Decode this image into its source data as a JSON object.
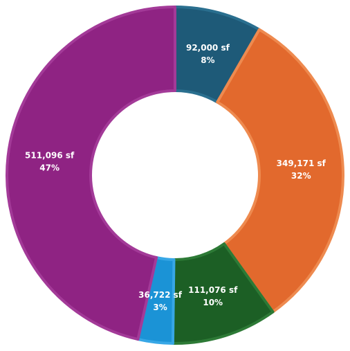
{
  "chart_data": {
    "type": "pie",
    "variant": "donut",
    "title": "",
    "unit": "sf",
    "slices": [
      {
        "value_label": "92,000 sf",
        "value": 92000,
        "percent": 8,
        "percent_label": "8%",
        "color": "#1e5a78",
        "stroke": "#2a6f8f"
      },
      {
        "value_label": "349,171 sf",
        "value": 349171,
        "percent": 32,
        "percent_label": "32%",
        "color": "#e2692d",
        "stroke": "#ee8a4f"
      },
      {
        "value_label": "111,076 sf",
        "value": 111076,
        "percent": 10,
        "percent_label": "10%",
        "color": "#1c5f25",
        "stroke": "#2d7a36"
      },
      {
        "value_label": "36,722 sf",
        "value": 36722,
        "percent": 3,
        "percent_label": "3%",
        "color": "#1b93d6",
        "stroke": "#37a7e6"
      },
      {
        "value_label": "511,096 sf",
        "value": 511096,
        "percent": 47,
        "percent_label": "47%",
        "color": "#8f2383",
        "stroke": "#a33a98"
      }
    ],
    "legend": "none",
    "start_angle": "12 o'clock",
    "direction": "clockwise"
  }
}
